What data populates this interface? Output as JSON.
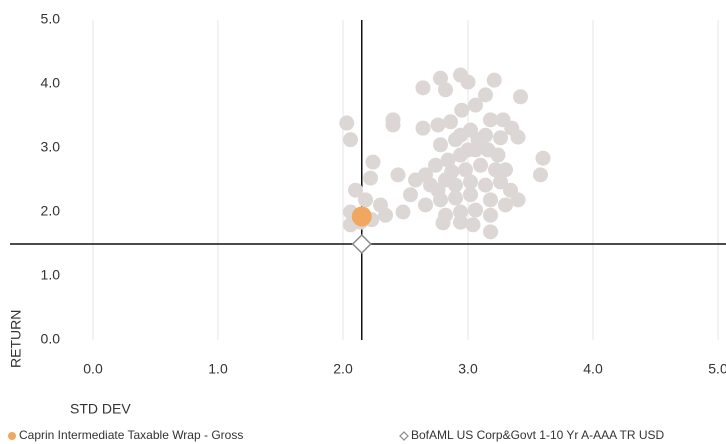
{
  "chart_data": {
    "type": "scatter",
    "xlabel": "STD DEV",
    "ylabel": "RETURN",
    "xlim": [
      0,
      5
    ],
    "ylim": [
      0,
      5
    ],
    "xticks": [
      {
        "value": 0,
        "label": "0.0"
      },
      {
        "value": 1,
        "label": "1.0"
      },
      {
        "value": 2,
        "label": "2.0"
      },
      {
        "value": 3,
        "label": "3.0"
      },
      {
        "value": 4,
        "label": "4.0"
      },
      {
        "value": 5,
        "label": "5.0"
      }
    ],
    "yticks": [
      {
        "value": 0,
        "label": "0.0"
      },
      {
        "value": 1,
        "label": "1.0"
      },
      {
        "value": 2,
        "label": "2.0"
      },
      {
        "value": 3,
        "label": "3.0"
      },
      {
        "value": 4,
        "label": "4.0"
      },
      {
        "value": 5,
        "label": "5.0"
      }
    ],
    "xgrid": true,
    "legend": "bottom",
    "series": [
      {
        "color": "#dcd7d5",
        "x": [
          2.03,
          2.06,
          2.4,
          2.4,
          2.24,
          2.22,
          2.44,
          2.54,
          2.48,
          2.1,
          2.18,
          2.3,
          2.06,
          2.34,
          2.14,
          2.06,
          2.23,
          2.64,
          2.78,
          2.82,
          2.94,
          3.0,
          3.21,
          3.14,
          3.42,
          2.64,
          2.76,
          2.86,
          2.95,
          3.06,
          3.18,
          3.28,
          3.35,
          3.4,
          3.26,
          3.14,
          3.02,
          2.9,
          2.78,
          2.94,
          3.06,
          2.84,
          2.74,
          2.98,
          3.1,
          3.22,
          3.3,
          3.6,
          3.58,
          2.66,
          2.7,
          2.82,
          2.9,
          3.02,
          3.14,
          3.26,
          3.34,
          2.66,
          2.78,
          2.9,
          3.02,
          3.18,
          3.3,
          3.4,
          2.82,
          2.94,
          3.06,
          3.18,
          2.8,
          2.94,
          3.18,
          3.04,
          2.76,
          2.58,
          2.94,
          3.08,
          3.0,
          2.87,
          3.16,
          3.24
        ],
        "y": [
          3.39,
          3.13,
          3.44,
          3.36,
          2.78,
          2.53,
          2.58,
          2.27,
          2.0,
          2.34,
          2.19,
          2.11,
          2.0,
          1.95,
          1.84,
          1.8,
          1.88,
          3.94,
          4.09,
          3.91,
          4.14,
          4.03,
          4.06,
          3.83,
          3.8,
          3.31,
          3.36,
          3.41,
          3.59,
          3.67,
          3.44,
          3.44,
          3.31,
          3.17,
          3.16,
          3.2,
          3.28,
          3.13,
          3.05,
          2.89,
          2.97,
          2.81,
          2.73,
          2.66,
          2.73,
          2.66,
          2.66,
          2.84,
          2.58,
          2.58,
          2.42,
          2.5,
          2.42,
          2.47,
          2.42,
          2.47,
          2.34,
          2.11,
          2.19,
          2.22,
          2.27,
          2.19,
          2.11,
          2.19,
          1.95,
          2.0,
          2.03,
          1.95,
          1.83,
          1.84,
          1.69,
          1.8,
          2.34,
          2.5,
          3.2,
          3.13,
          2.97,
          2.63,
          2.97,
          2.89
        ]
      },
      {
        "name": "Caprin Intermediate Taxable Wrap - Gross",
        "color": "#f0a860",
        "marker": "circle",
        "x": [
          2.15
        ],
        "y": [
          1.93
        ]
      },
      {
        "name": "BofAML US Corp&Govt 1-10 Yr A-AAA TR USD",
        "color": "#8a8a8a",
        "marker": "diamond",
        "crosshair": true,
        "x": [
          2.15
        ],
        "y": [
          1.5
        ]
      }
    ]
  }
}
